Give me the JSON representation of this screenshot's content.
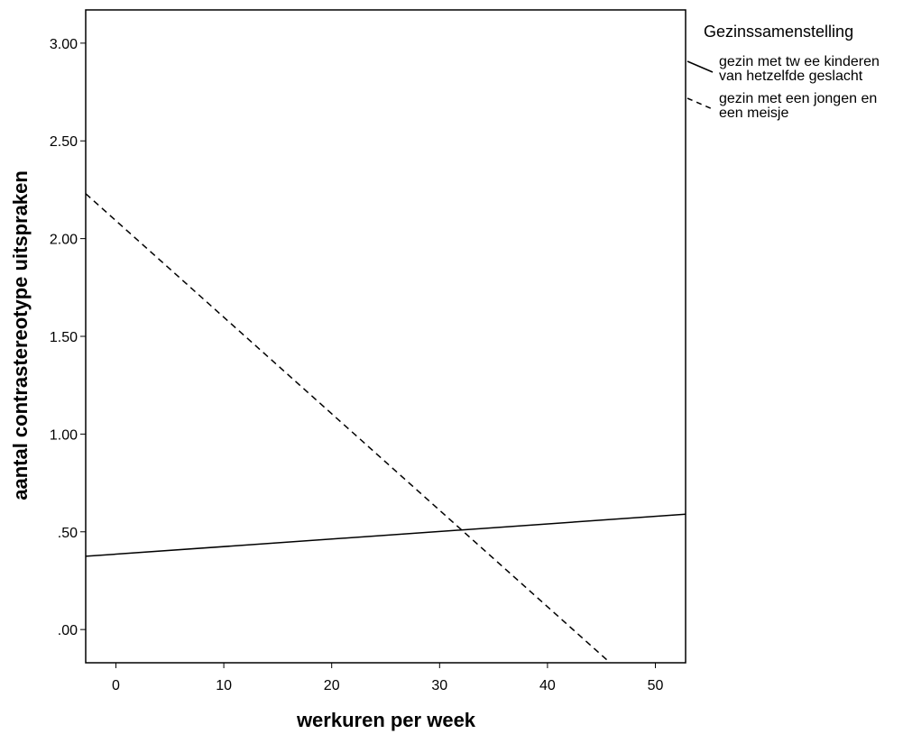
{
  "chart_data": {
    "type": "line",
    "xlabel": "werkuren per week",
    "ylabel": "aantal contrastereotype uitspraken",
    "xlim": [
      -2.8,
      52.8
    ],
    "ylim": [
      -0.17,
      3.17
    ],
    "x_ticks": [
      0,
      10,
      20,
      30,
      40,
      50
    ],
    "x_tick_labels": [
      "0",
      "10",
      "20",
      "30",
      "40",
      "50"
    ],
    "y_ticks": [
      0,
      0.5,
      1.0,
      1.5,
      2.0,
      2.5,
      3.0
    ],
    "y_tick_labels": [
      ".00",
      ".50",
      "1.00",
      "1.50",
      "2.00",
      "2.50",
      "3.00"
    ],
    "grid": false,
    "legend_title": "Gezinssamenstelling",
    "legend_position": "right",
    "series": [
      {
        "name": "gezin met tw ee kinderen van hetzelfde geslacht",
        "label_lines": [
          "gezin met tw ee kinderen",
          "van hetzelfde geslacht"
        ],
        "style": "solid",
        "color": "#000000",
        "x": [
          -2.8,
          52.8
        ],
        "y": [
          0.375,
          0.59
        ]
      },
      {
        "name": "gezin met een jongen en een meisje",
        "label_lines": [
          "gezin met een jongen en",
          "een meisje"
        ],
        "style": "dashed",
        "color": "#000000",
        "x": [
          -2.8,
          45.8
        ],
        "y": [
          2.23,
          -0.17
        ]
      }
    ]
  }
}
